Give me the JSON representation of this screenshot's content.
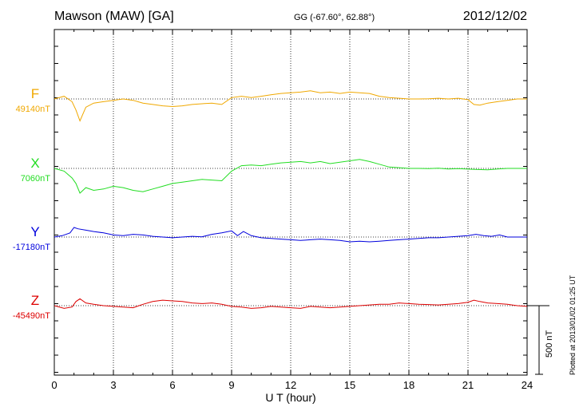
{
  "header": {
    "station": "Mawson (MAW)  [GA]",
    "coords": "GG (-67.60°,  62.88°)",
    "date": "2012/12/02"
  },
  "plotted_note": "Plotted at 2013/01/02 01:25 UT",
  "scale_bar_label": "500 nT",
  "chart_data": {
    "type": "line",
    "xlabel": "U T (hour)",
    "xlim": [
      0,
      24
    ],
    "xticks": [
      0,
      3,
      6,
      9,
      12,
      15,
      18,
      21,
      24
    ],
    "scale_bar_nT": 500,
    "grid": "dotted vertical at every 3 hours",
    "series": [
      {
        "name": "F",
        "baseline_label": "49140nT",
        "baseline": 49140,
        "color": "#f0a800",
        "x": [
          0,
          0.5,
          0.9,
          1.1,
          1.3,
          1.6,
          2,
          2.5,
          3,
          3.5,
          4,
          4.5,
          5,
          5.5,
          6,
          6.5,
          7,
          7.5,
          8,
          8.5,
          9,
          9.5,
          10,
          10.5,
          11,
          11.5,
          12,
          12.5,
          13,
          13.5,
          14,
          14.5,
          15,
          15.5,
          16,
          16.5,
          17,
          17.5,
          18,
          18.5,
          19,
          19.5,
          20,
          20.5,
          21,
          21.3,
          21.6,
          22,
          22.5,
          23,
          23.5,
          24
        ],
        "y": [
          49140,
          49160,
          49120,
          49060,
          48980,
          49080,
          49110,
          49120,
          49130,
          49140,
          49130,
          49110,
          49100,
          49090,
          49085,
          49090,
          49100,
          49105,
          49110,
          49100,
          49150,
          49160,
          49150,
          49160,
          49170,
          49180,
          49185,
          49190,
          49200,
          49185,
          49190,
          49180,
          49190,
          49185,
          49180,
          49160,
          49150,
          49145,
          49140,
          49140,
          49142,
          49145,
          49140,
          49145,
          49135,
          49100,
          49095,
          49110,
          49120,
          49130,
          49140,
          49140
        ]
      },
      {
        "name": "X",
        "baseline_label": "7060nT",
        "baseline": 7060,
        "color": "#22dd22",
        "x": [
          0,
          0.5,
          0.9,
          1.1,
          1.3,
          1.6,
          2,
          2.5,
          3,
          3.5,
          4,
          4.5,
          5,
          5.5,
          6,
          6.5,
          7,
          7.5,
          8,
          8.5,
          9,
          9.5,
          10,
          10.5,
          11,
          11.5,
          12,
          12.5,
          13,
          13.5,
          14,
          14.5,
          15,
          15.5,
          16,
          16.5,
          17,
          17.5,
          18,
          18.5,
          19,
          19.5,
          20,
          20.5,
          21,
          21.5,
          22,
          22.5,
          23,
          23.5,
          24
        ],
        "y": [
          7060,
          7040,
          6990,
          6950,
          6880,
          6920,
          6900,
          6910,
          6930,
          6920,
          6900,
          6890,
          6910,
          6930,
          6950,
          6960,
          6970,
          6980,
          6975,
          6970,
          7040,
          7080,
          7085,
          7080,
          7090,
          7100,
          7105,
          7110,
          7100,
          7110,
          7095,
          7105,
          7115,
          7125,
          7110,
          7090,
          7070,
          7065,
          7060,
          7060,
          7058,
          7062,
          7056,
          7058,
          7055,
          7052,
          7050,
          7056,
          7060,
          7060,
          7060
        ]
      },
      {
        "name": "Y",
        "baseline_label": "-17180nT",
        "baseline": -17180,
        "color": "#0000dd",
        "x": [
          0,
          0.4,
          0.8,
          1,
          1.2,
          1.6,
          2,
          2.5,
          3,
          3.5,
          4,
          4.5,
          5,
          5.5,
          6,
          6.5,
          7,
          7.5,
          8,
          8.5,
          9,
          9.3,
          9.6,
          10,
          10.5,
          11,
          11.5,
          12,
          12.5,
          13,
          13.5,
          14,
          14.5,
          15,
          15.5,
          16,
          16.5,
          17,
          17.5,
          18,
          18.5,
          19,
          19.5,
          20,
          20.5,
          21,
          21.4,
          21.8,
          22.2,
          22.6,
          23,
          23.5,
          24
        ],
        "y": [
          -17180,
          -17170,
          -17150,
          -17110,
          -17120,
          -17130,
          -17140,
          -17150,
          -17165,
          -17170,
          -17160,
          -17165,
          -17175,
          -17180,
          -17185,
          -17180,
          -17175,
          -17178,
          -17160,
          -17150,
          -17135,
          -17170,
          -17140,
          -17170,
          -17185,
          -17190,
          -17195,
          -17200,
          -17205,
          -17200,
          -17195,
          -17200,
          -17205,
          -17215,
          -17210,
          -17215,
          -17210,
          -17205,
          -17200,
          -17195,
          -17190,
          -17185,
          -17185,
          -17180,
          -17175,
          -17170,
          -17160,
          -17170,
          -17175,
          -17165,
          -17180,
          -17180,
          -17180
        ]
      },
      {
        "name": "Z",
        "baseline_label": "-45490nT",
        "baseline": -45490,
        "color": "#dd0000",
        "x": [
          0,
          0.5,
          0.9,
          1.1,
          1.3,
          1.6,
          2,
          2.5,
          3,
          3.5,
          4,
          4.5,
          5,
          5.5,
          6,
          6.5,
          7,
          7.5,
          8,
          8.5,
          9,
          9.5,
          10,
          10.5,
          11,
          11.5,
          12,
          12.5,
          13,
          13.5,
          14,
          14.5,
          15,
          15.5,
          16,
          16.5,
          17,
          17.5,
          18,
          18.5,
          19,
          19.5,
          20,
          20.5,
          21,
          21.3,
          21.6,
          22,
          22.5,
          23,
          23.5,
          24
        ],
        "y": [
          -45490,
          -45510,
          -45500,
          -45460,
          -45440,
          -45470,
          -45480,
          -45490,
          -45495,
          -45500,
          -45505,
          -45480,
          -45460,
          -45450,
          -45455,
          -45460,
          -45470,
          -45475,
          -45470,
          -45480,
          -45495,
          -45500,
          -45510,
          -45505,
          -45495,
          -45500,
          -45505,
          -45510,
          -45495,
          -45500,
          -45505,
          -45500,
          -45495,
          -45490,
          -45485,
          -45480,
          -45480,
          -45470,
          -45475,
          -45480,
          -45482,
          -45485,
          -45480,
          -45475,
          -45465,
          -45450,
          -45460,
          -45470,
          -45475,
          -45480,
          -45490,
          -45495
        ]
      }
    ]
  }
}
